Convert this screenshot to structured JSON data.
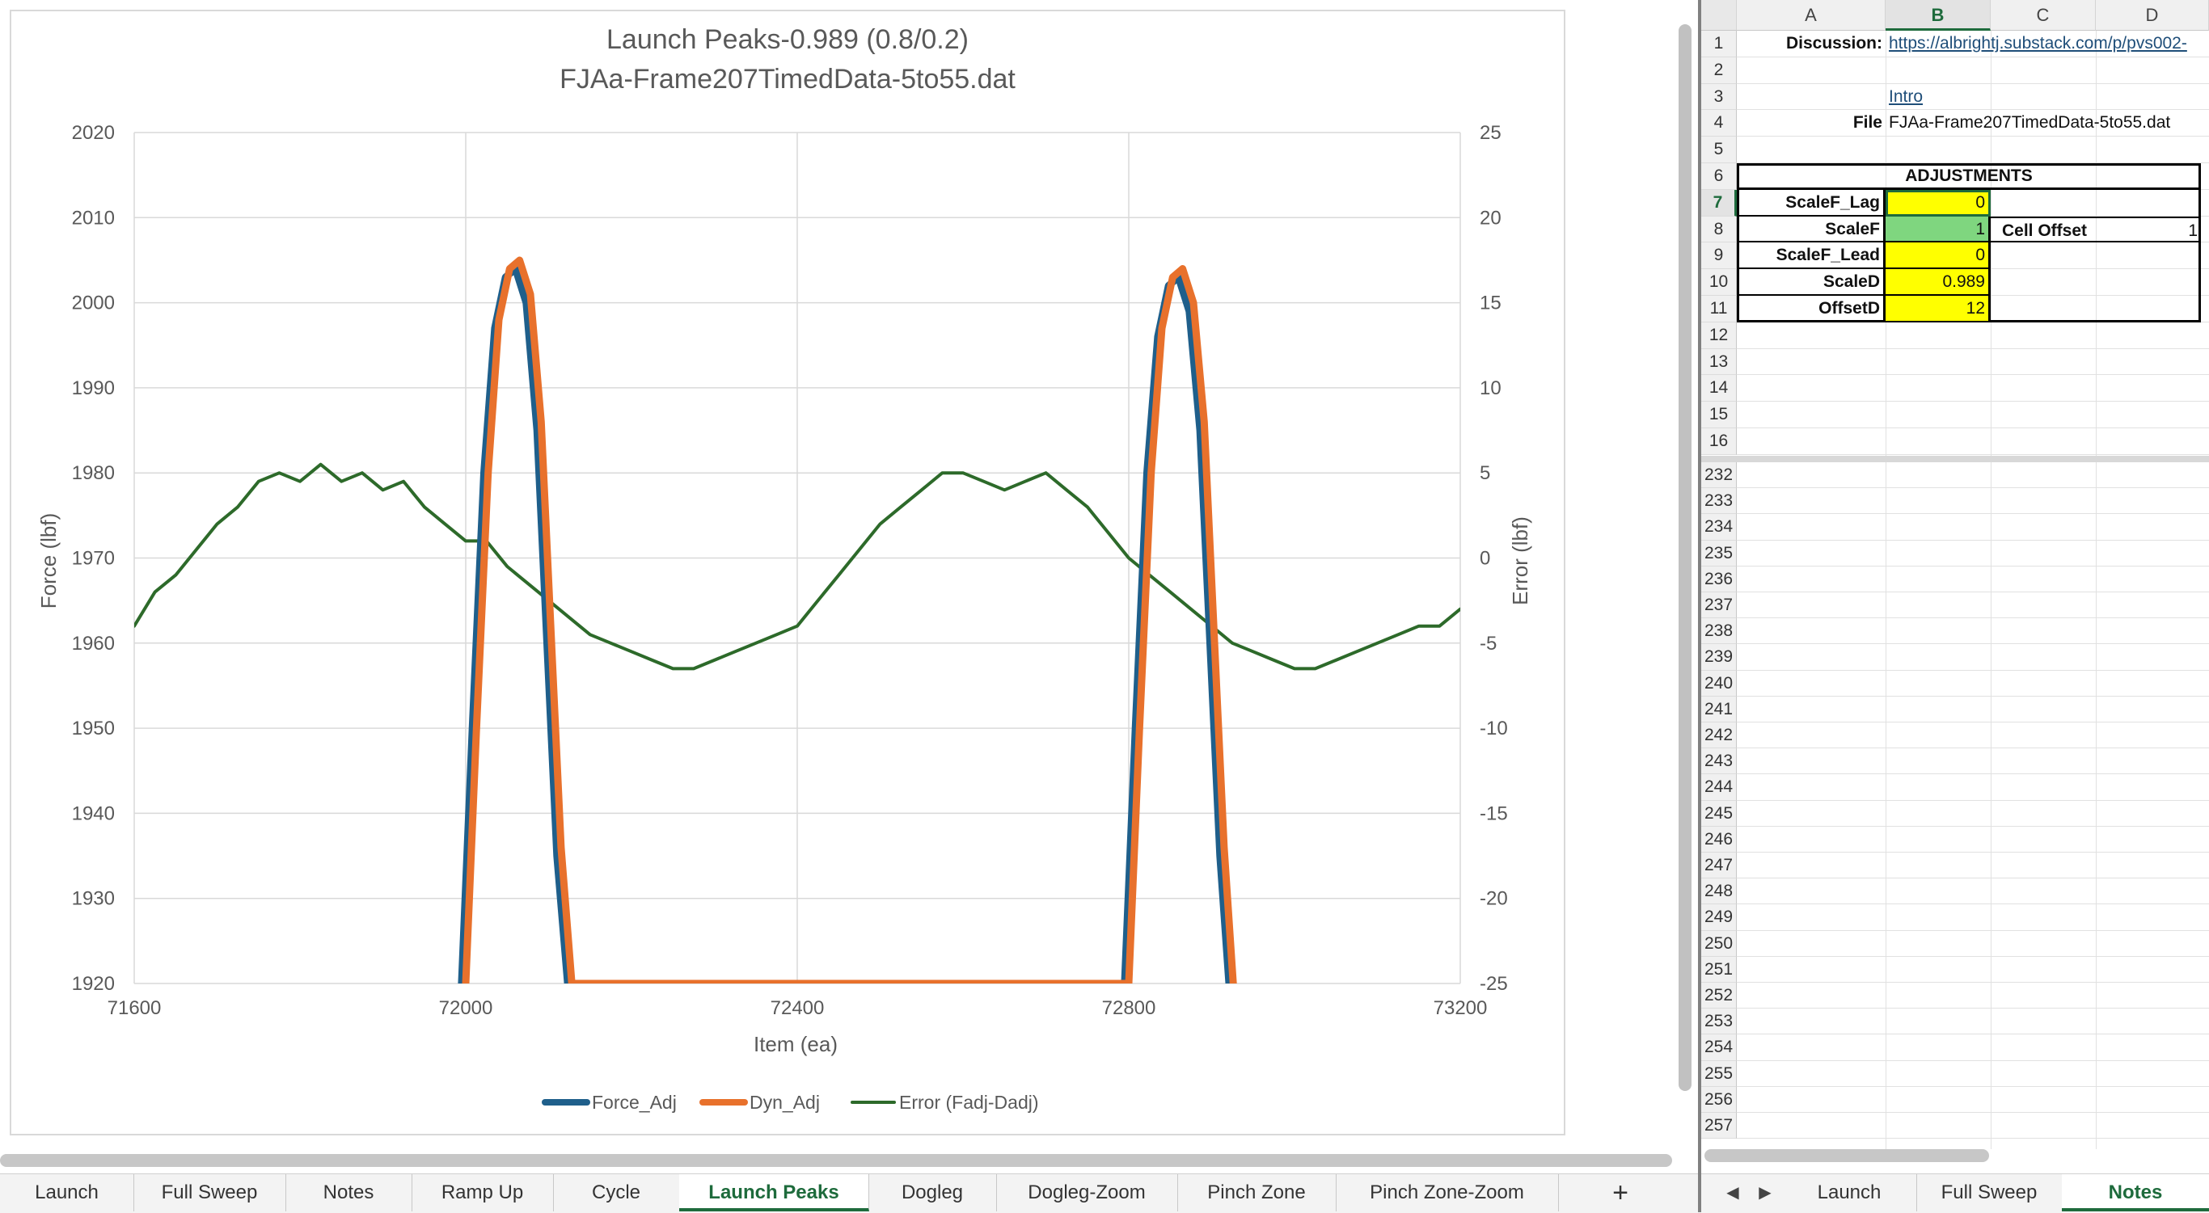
{
  "chart_data": {
    "type": "line",
    "title": "Launch Peaks-0.989 (0.8/0.2)",
    "subtitle": "FJAa-Frame207TimedData-5to55.dat",
    "xlabel": "Item (ea)",
    "ylabel": "Force (lbf)",
    "y2label": "Error (lbf)",
    "xlim": [
      71600,
      73200
    ],
    "ylim": [
      1920,
      2020
    ],
    "y2lim": [
      -25,
      25
    ],
    "xticks": [
      "71600",
      "72000",
      "72400",
      "72800",
      "73200"
    ],
    "yticks": [
      "2020",
      "2010",
      "2000",
      "1990",
      "1980",
      "1970",
      "1960",
      "1950",
      "1940",
      "1930",
      "1920"
    ],
    "y2ticks": [
      "25",
      "20",
      "15",
      "10",
      "5",
      "0",
      "-5",
      "-10",
      "-15",
      "-20",
      "-25"
    ],
    "grid": true,
    "legend_position": "bottom",
    "series": [
      {
        "name": "Force_Adj",
        "axis": "left",
        "color": "#1f5f8b",
        "x": [
          71995,
          72008,
          72022,
          72035,
          72048,
          72060,
          72073,
          72086,
          72098,
          72110,
          72123,
          72795,
          72808,
          72822,
          72835,
          72848,
          72860,
          72873,
          72886,
          72898,
          72910,
          72921
        ],
        "y": [
          1920,
          1950,
          1980,
          1997,
          2003,
          2004,
          2000,
          1985,
          1960,
          1935,
          1920,
          1920,
          1950,
          1980,
          1996,
          2002,
          2003,
          1999,
          1985,
          1960,
          1935,
          1920
        ]
      },
      {
        "name": "Dyn_Adj",
        "axis": "left",
        "color": "#e8712c",
        "x": [
          72000,
          72013,
          72027,
          72040,
          72053,
          72065,
          72078,
          72091,
          72103,
          72115,
          72128,
          72800,
          72813,
          72827,
          72840,
          72853,
          72865,
          72878,
          72891,
          72903,
          72915,
          72926
        ],
        "y": [
          1920,
          1950,
          1980,
          1998,
          2004,
          2005,
          2001,
          1986,
          1961,
          1936,
          1920,
          1920,
          1950,
          1980,
          1997,
          2003,
          2004,
          2000,
          1986,
          1961,
          1936,
          1920
        ]
      },
      {
        "name": "Error (Fadj-Dadj)",
        "axis": "right",
        "color": "#2d6a2a",
        "x": [
          71600,
          71625,
          71650,
          71675,
          71700,
          71725,
          71750,
          71775,
          71800,
          71825,
          71850,
          71875,
          71900,
          71925,
          71950,
          71975,
          72000,
          72025,
          72050,
          72075,
          72100,
          72125,
          72150,
          72175,
          72200,
          72225,
          72250,
          72275,
          72300,
          72325,
          72350,
          72375,
          72400,
          72425,
          72450,
          72475,
          72500,
          72525,
          72550,
          72575,
          72600,
          72625,
          72650,
          72675,
          72700,
          72725,
          72750,
          72775,
          72800,
          72825,
          72850,
          72875,
          72900,
          72925,
          72950,
          72975,
          73000,
          73025,
          73050,
          73075,
          73100,
          73125,
          73150,
          73175,
          73200
        ],
        "y": [
          -4,
          -2,
          -1,
          0.5,
          2,
          3,
          4.5,
          5,
          4.5,
          5.5,
          4.5,
          5,
          4,
          4.5,
          3,
          2,
          1,
          1,
          -0.5,
          -1.5,
          -2.5,
          -3.5,
          -4.5,
          -5,
          -5.5,
          -6,
          -6.5,
          -6.5,
          -6,
          -5.5,
          -5,
          -4.5,
          -4,
          -2.5,
          -1,
          0.5,
          2,
          3,
          4,
          5,
          5,
          4.5,
          4,
          4.5,
          5,
          4,
          3,
          1.5,
          0,
          -1,
          -2,
          -3,
          -4,
          -5,
          -5.5,
          -6,
          -6.5,
          -6.5,
          -6,
          -5.5,
          -5,
          -4.5,
          -4,
          -4,
          -3
        ]
      }
    ]
  },
  "sheet_tabs": [
    "Launch",
    "Full Sweep",
    "Notes",
    "Ramp Up",
    "Cycle",
    "Launch Peaks",
    "Dogleg",
    "Dogleg-Zoom",
    "Pinch Zone",
    "Pinch Zone-Zoom"
  ],
  "active_tab": "Launch Peaks",
  "add_sheet_label": "+",
  "spreadsheet": {
    "columns": [
      "A",
      "B",
      "C",
      "D"
    ],
    "top_rows": [
      "1",
      "2",
      "3",
      "4",
      "5",
      "6",
      "7",
      "8",
      "9",
      "10",
      "11",
      "12",
      "13",
      "14",
      "15",
      "16"
    ],
    "bottom_rows": [
      "232",
      "233",
      "234",
      "235",
      "236",
      "237",
      "238",
      "239",
      "240",
      "241",
      "242",
      "243",
      "244",
      "245",
      "246",
      "247",
      "248",
      "249",
      "250",
      "251",
      "252",
      "253",
      "254",
      "255",
      "256",
      "257"
    ],
    "discussion_label": "Discussion:",
    "discussion_link": "https://albrightj.substack.com/p/pvs002-",
    "intro_link": "Intro",
    "file_label": "File",
    "file_value": "FJAa-Frame207TimedData-5to55.dat",
    "adjustments_header": "ADJUSTMENTS",
    "params": [
      {
        "label": "ScaleF_Lag",
        "value": "0",
        "color": "#ffff00"
      },
      {
        "label": "ScaleF",
        "value": "1",
        "color": "#7fd67f"
      },
      {
        "label": "ScaleF_Lead",
        "value": "0",
        "color": "#ffff00"
      },
      {
        "label": "ScaleD",
        "value": "0.989",
        "color": "#ffff00"
      },
      {
        "label": "OffsetD",
        "value": "12",
        "color": "#ffff00"
      }
    ],
    "cell_offset_label": "Cell Offset",
    "cell_offset_value": "1"
  },
  "right_tabs": [
    "Launch",
    "Full Sweep",
    "Notes"
  ],
  "right_active_tab": "Notes"
}
